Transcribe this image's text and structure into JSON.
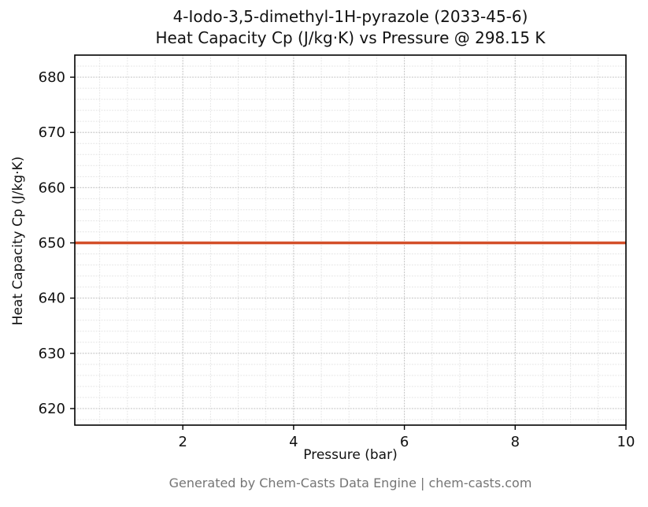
{
  "title_line1": "4-Iodo-3,5-dimethyl-1H-pyrazole (2033-45-6)",
  "title_line2": "Heat Capacity Cp (J/kg·K) vs Pressure @ 298.15 K",
  "footer": "Generated by Chem-Casts Data Engine | chem-casts.com",
  "chart_data": {
    "type": "line",
    "title": "4-Iodo-3,5-dimethyl-1H-pyrazole (2033-45-6) Heat Capacity Cp (J/kg·K) vs Pressure @ 298.15 K",
    "xlabel": "Pressure (bar)",
    "ylabel": "Heat Capacity Cp (J/kg·K)",
    "xlim": [
      0.05,
      10
    ],
    "ylim": [
      617,
      684
    ],
    "xticks": [
      2,
      4,
      6,
      8,
      10
    ],
    "yticks": [
      620,
      630,
      640,
      650,
      660,
      670,
      680
    ],
    "x_minor_step": 0.5,
    "y_minor_step": 2,
    "grid": "dotted-major-and-minor",
    "grid_major_color": "#c6c6c6",
    "grid_minor_color": "#e3e3e3",
    "legend": "none",
    "series": [
      {
        "name": "Heat Capacity Cp",
        "color": "#d34f29",
        "line_width": 3.5,
        "x": [
          0.05,
          1,
          2,
          3,
          4,
          5,
          6,
          7,
          8,
          9,
          10
        ],
        "y": [
          650,
          650,
          650,
          650,
          650,
          650,
          650,
          650,
          650,
          650,
          650
        ]
      }
    ]
  }
}
